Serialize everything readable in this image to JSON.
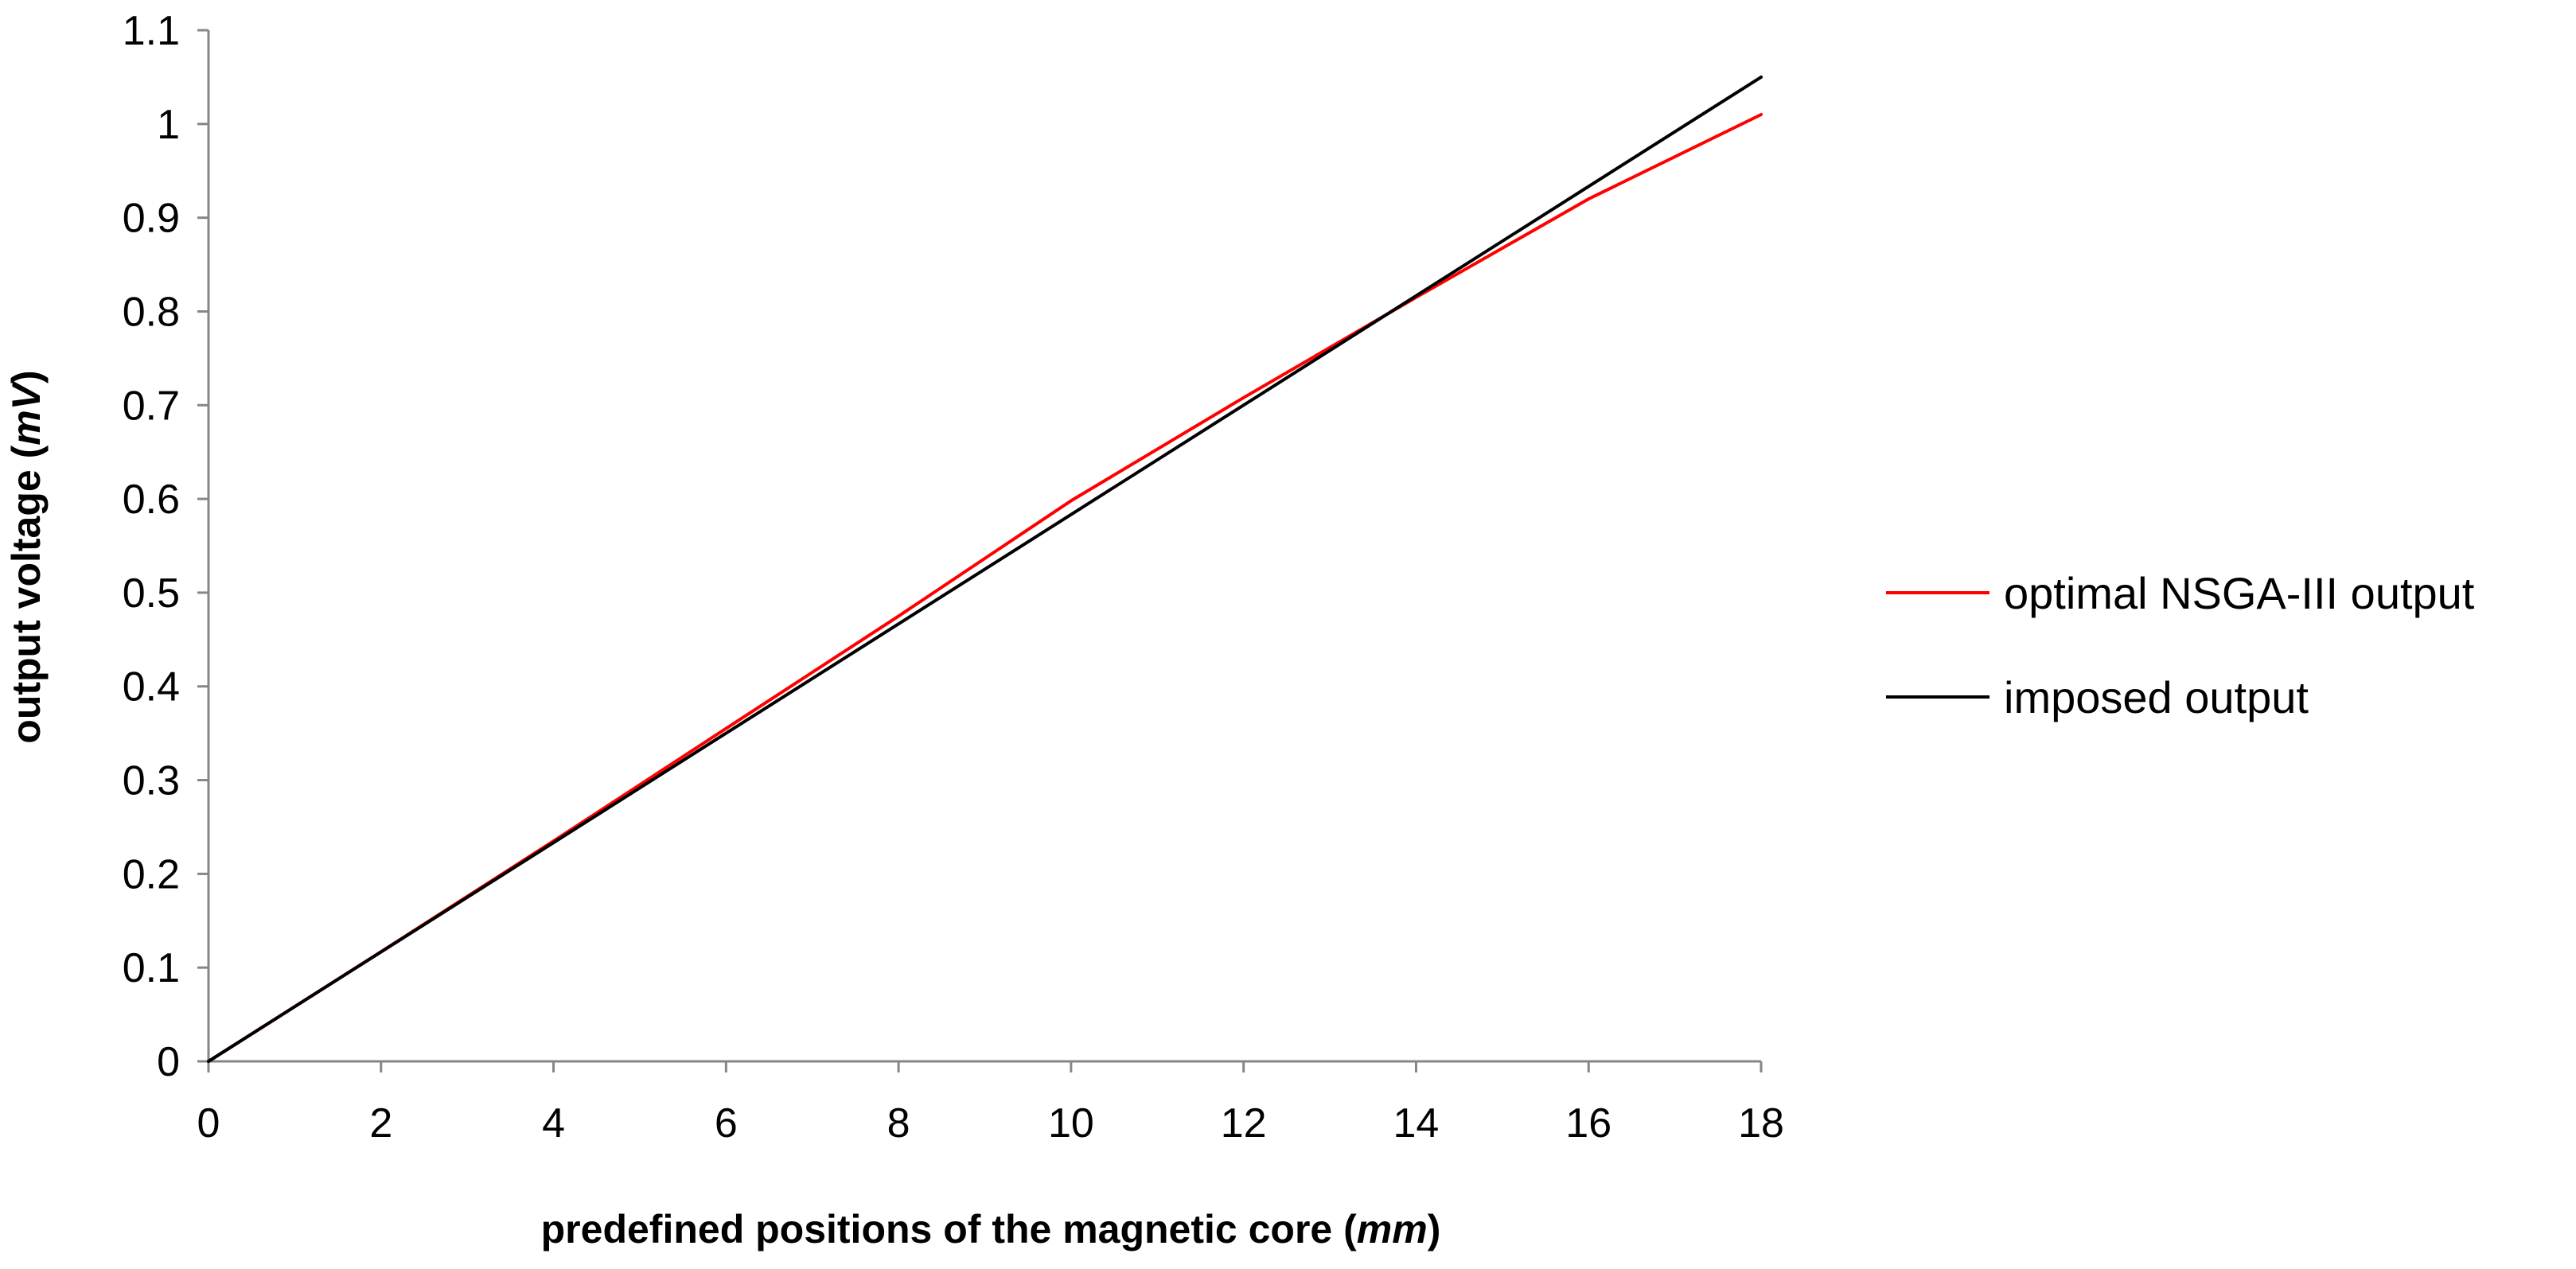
{
  "chart_data": {
    "type": "line",
    "title": "",
    "xlabel": "predefined positions of the magnetic core",
    "xlabel_unit": "mm",
    "ylabel": "output voltage",
    "ylabel_unit": "mV",
    "xlim": [
      0,
      18
    ],
    "ylim": [
      0,
      1.1
    ],
    "x_ticks": [
      0,
      2,
      4,
      6,
      8,
      10,
      12,
      14,
      16,
      18
    ],
    "y_ticks": [
      0,
      0.1,
      0.2,
      0.3,
      0.4,
      0.5,
      0.6,
      0.7,
      0.8,
      0.9,
      1,
      1.1
    ],
    "x_tick_labels": [
      "0",
      "2",
      "4",
      "6",
      "8",
      "10",
      "12",
      "14",
      "16",
      "18"
    ],
    "y_tick_labels": [
      "0",
      "0.1",
      "0.2",
      "0.3",
      "0.4",
      "0.5",
      "0.6",
      "0.7",
      "0.8",
      "0.9",
      "1",
      "1.1"
    ],
    "grid": false,
    "legend_position": "right",
    "series": [
      {
        "name": "optimal NSGA-III output",
        "color": "#ff0000",
        "x": [
          0,
          2,
          4,
          6,
          8,
          10,
          12,
          14,
          16,
          18
        ],
        "y": [
          0,
          0.117,
          0.235,
          0.355,
          0.475,
          0.598,
          0.708,
          0.815,
          0.92,
          1.01
        ]
      },
      {
        "name": "imposed output",
        "color": "#000000",
        "x": [
          0,
          18
        ],
        "y": [
          0,
          1.05
        ]
      }
    ]
  }
}
